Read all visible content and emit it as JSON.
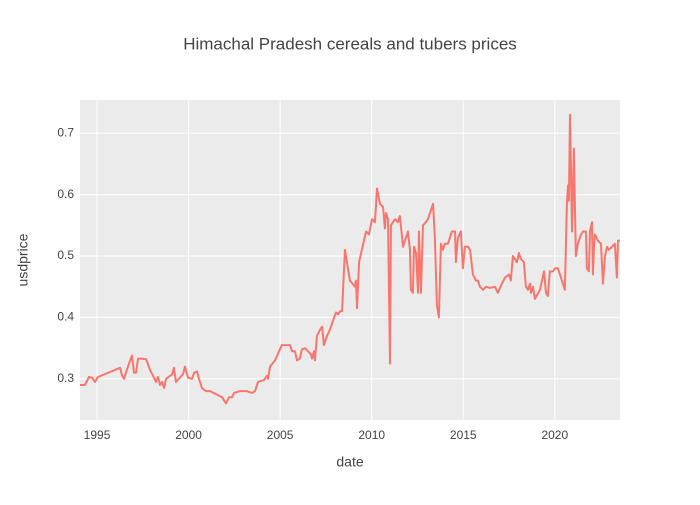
{
  "chart_data": {
    "type": "line",
    "title": "Himachal Pradesh cereals and tubers prices",
    "x_label": "date",
    "y_label": "usdprice",
    "x": [
      1994.07,
      1994.34,
      1994.56,
      1994.73,
      1994.89,
      1995.05,
      1996.26,
      1996.37,
      1996.47,
      1996.69,
      1996.91,
      1997.02,
      1997.13,
      1997.24,
      1997.4,
      1997.68,
      1997.89,
      1998.06,
      1998.22,
      1998.33,
      1998.44,
      1998.55,
      1998.66,
      1998.77,
      1998.99,
      1999.1,
      1999.2,
      1999.31,
      1999.53,
      1999.7,
      1999.8,
      1999.97,
      2000.19,
      2000.3,
      2000.46,
      2000.57,
      2000.73,
      2000.95,
      2001.17,
      2001.83,
      2002.04,
      2002.21,
      2002.37,
      2002.48,
      2002.81,
      2003.19,
      2003.46,
      2003.63,
      2003.79,
      2004.12,
      2004.28,
      2004.34,
      2004.45,
      2004.72,
      2004.94,
      2005.1,
      2005.32,
      2005.54,
      2005.65,
      2005.81,
      2005.92,
      2006.08,
      2006.19,
      2006.36,
      2006.58,
      2006.68,
      2006.74,
      2006.85,
      2006.9,
      2007.01,
      2007.18,
      2007.29,
      2007.39,
      2007.56,
      2007.72,
      2007.89,
      2008.05,
      2008.16,
      2008.27,
      2008.38,
      2008.54,
      2008.81,
      2009.09,
      2009.14,
      2009.2,
      2009.31,
      2009.69,
      2009.85,
      2010.02,
      2010.18,
      2010.29,
      2010.45,
      2010.62,
      2010.72,
      2010.78,
      2010.89,
      2011.0,
      2011.05,
      2011.27,
      2011.43,
      2011.54,
      2011.71,
      2011.87,
      2011.98,
      2012.09,
      2012.14,
      2012.25,
      2012.31,
      2012.42,
      2012.53,
      2012.58,
      2012.69,
      2012.8,
      2012.96,
      2013.07,
      2013.24,
      2013.35,
      2013.45,
      2013.56,
      2013.67,
      2013.78,
      2013.89,
      2014.0,
      2014.16,
      2014.38,
      2014.55,
      2014.6,
      2014.71,
      2014.87,
      2014.98,
      2015.09,
      2015.26,
      2015.37,
      2015.53,
      2015.69,
      2015.8,
      2015.91,
      2016.08,
      2016.24,
      2016.46,
      2016.73,
      2016.89,
      2017.11,
      2017.28,
      2017.5,
      2017.6,
      2017.71,
      2017.93,
      2018.04,
      2018.15,
      2018.31,
      2018.42,
      2018.53,
      2018.64,
      2018.7,
      2018.81,
      2018.91,
      2019.19,
      2019.41,
      2019.52,
      2019.62,
      2019.73,
      2019.9,
      2020.01,
      2020.17,
      2020.28,
      2020.44,
      2020.55,
      2020.66,
      2020.72,
      2020.77,
      2020.83,
      2020.94,
      2021.04,
      2021.15,
      2021.26,
      2021.43,
      2021.54,
      2021.7,
      2021.75,
      2021.86,
      2021.92,
      2022.03,
      2022.08,
      2022.14,
      2022.19,
      2022.35,
      2022.52,
      2022.63,
      2022.74,
      2022.85,
      2022.95,
      2023.12,
      2023.28,
      2023.39,
      2023.45,
      2023.56
    ],
    "values": [
      0.29,
      0.29,
      0.303,
      0.302,
      0.295,
      0.303,
      0.318,
      0.305,
      0.3,
      0.32,
      0.338,
      0.31,
      0.31,
      0.333,
      0.333,
      0.332,
      0.315,
      0.305,
      0.295,
      0.303,
      0.29,
      0.295,
      0.285,
      0.3,
      0.305,
      0.307,
      0.318,
      0.295,
      0.302,
      0.308,
      0.32,
      0.302,
      0.3,
      0.31,
      0.312,
      0.3,
      0.285,
      0.28,
      0.28,
      0.27,
      0.26,
      0.27,
      0.27,
      0.277,
      0.28,
      0.28,
      0.277,
      0.28,
      0.295,
      0.298,
      0.305,
      0.3,
      0.32,
      0.33,
      0.345,
      0.355,
      0.355,
      0.355,
      0.345,
      0.345,
      0.33,
      0.333,
      0.348,
      0.35,
      0.343,
      0.34,
      0.333,
      0.345,
      0.33,
      0.37,
      0.38,
      0.385,
      0.355,
      0.37,
      0.38,
      0.395,
      0.408,
      0.405,
      0.41,
      0.41,
      0.51,
      0.46,
      0.45,
      0.46,
      0.415,
      0.49,
      0.54,
      0.535,
      0.56,
      0.555,
      0.61,
      0.585,
      0.58,
      0.545,
      0.57,
      0.56,
      0.325,
      0.55,
      0.56,
      0.555,
      0.565,
      0.515,
      0.53,
      0.54,
      0.51,
      0.445,
      0.44,
      0.515,
      0.505,
      0.44,
      0.54,
      0.44,
      0.55,
      0.555,
      0.56,
      0.575,
      0.585,
      0.53,
      0.42,
      0.4,
      0.52,
      0.51,
      0.52,
      0.52,
      0.54,
      0.54,
      0.49,
      0.53,
      0.54,
      0.48,
      0.515,
      0.515,
      0.51,
      0.47,
      0.46,
      0.46,
      0.45,
      0.445,
      0.45,
      0.448,
      0.45,
      0.44,
      0.455,
      0.465,
      0.47,
      0.46,
      0.5,
      0.49,
      0.505,
      0.495,
      0.49,
      0.45,
      0.445,
      0.455,
      0.44,
      0.45,
      0.43,
      0.445,
      0.475,
      0.44,
      0.435,
      0.475,
      0.475,
      0.48,
      0.48,
      0.47,
      0.455,
      0.445,
      0.585,
      0.615,
      0.59,
      0.73,
      0.54,
      0.675,
      0.5,
      0.52,
      0.535,
      0.54,
      0.54,
      0.48,
      0.475,
      0.54,
      0.555,
      0.47,
      0.515,
      0.535,
      0.525,
      0.52,
      0.455,
      0.5,
      0.515,
      0.51,
      0.515,
      0.52,
      0.465,
      0.525,
      0.525
    ],
    "color": "#f8766d",
    "xlim": [
      1994.07,
      2023.56
    ],
    "xticks": [
      1995,
      2000,
      2005,
      2010,
      2015,
      2020
    ],
    "ylim": [
      0.233,
      0.754
    ],
    "yticks": [
      0.3,
      0.4,
      0.5,
      0.6,
      0.7
    ],
    "grid": true
  }
}
